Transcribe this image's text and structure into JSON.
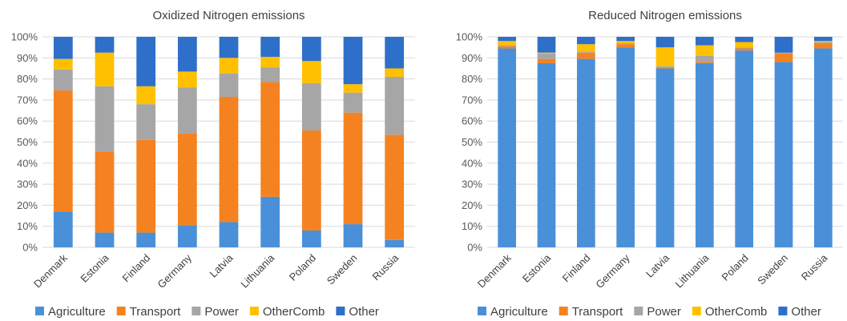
{
  "chart_data": [
    {
      "type": "bar",
      "stacked": true,
      "title": "Oxidized Nitrogen emissions",
      "categories": [
        "Denmark",
        "Estonia",
        "Finland",
        "Germany",
        "Latvia",
        "Lithuania",
        "Poland",
        "Sweden",
        "Russia"
      ],
      "ylim": [
        0,
        100
      ],
      "yticks": [
        "0%",
        "10%",
        "20%",
        "30%",
        "40%",
        "50%",
        "60%",
        "70%",
        "80%",
        "90%",
        "100%"
      ],
      "grid": true,
      "legend_position": "bottom",
      "series": [
        {
          "name": "Agriculture",
          "color": "#4A90D9",
          "values": [
            17,
            7,
            7,
            10.5,
            12,
            24,
            8,
            11,
            3.5
          ]
        },
        {
          "name": "Transport",
          "color": "#F58220",
          "values": [
            57.5,
            38.5,
            44,
            43.5,
            59.5,
            54.5,
            47.5,
            53,
            50
          ]
        },
        {
          "name": "Power",
          "color": "#A6A6A6",
          "values": [
            10,
            31,
            17,
            22,
            11,
            7,
            22.5,
            9.5,
            27.5
          ]
        },
        {
          "name": "OtherComb",
          "color": "#FFC000",
          "values": [
            5,
            16,
            8.5,
            7.5,
            7.5,
            5,
            10.5,
            4,
            4
          ]
        },
        {
          "name": "Other",
          "color": "#2E6FC9",
          "values": [
            10.5,
            7.5,
            23.5,
            16.5,
            10,
            9.5,
            11.5,
            22.5,
            15
          ]
        }
      ]
    },
    {
      "type": "bar",
      "stacked": true,
      "title": "Reduced Nitrogen emissions",
      "categories": [
        "Denmark",
        "Estonia",
        "Finland",
        "Germany",
        "Latvia",
        "Lithuania",
        "Poland",
        "Sweden",
        "Russia"
      ],
      "ylim": [
        0,
        100
      ],
      "yticks": [
        "0%",
        "10%",
        "20%",
        "30%",
        "40%",
        "50%",
        "60%",
        "70%",
        "80%",
        "90%",
        "100%"
      ],
      "grid": true,
      "legend_position": "bottom",
      "series": [
        {
          "name": "Agriculture",
          "color": "#4A90D9",
          "values": [
            94.5,
            87.5,
            89.5,
            95,
            85,
            87.5,
            93.5,
            88,
            94.5
          ]
        },
        {
          "name": "Transport",
          "color": "#F58220",
          "values": [
            1,
            2,
            3,
            1.5,
            0.5,
            0.5,
            1,
            4,
            2.5
          ]
        },
        {
          "name": "Power",
          "color": "#A6A6A6",
          "values": [
            0.5,
            2.5,
            0.5,
            0.5,
            0.5,
            3,
            0.5,
            0.5,
            0.5
          ]
        },
        {
          "name": "OtherComb",
          "color": "#FFC000",
          "values": [
            2,
            0.5,
            3.5,
            1,
            9,
            5,
            2.5,
            0,
            0.5
          ]
        },
        {
          "name": "Other",
          "color": "#2E6FC9",
          "values": [
            2,
            7.5,
            3.5,
            2,
            5,
            4,
            2.5,
            7.5,
            2
          ]
        }
      ]
    }
  ]
}
